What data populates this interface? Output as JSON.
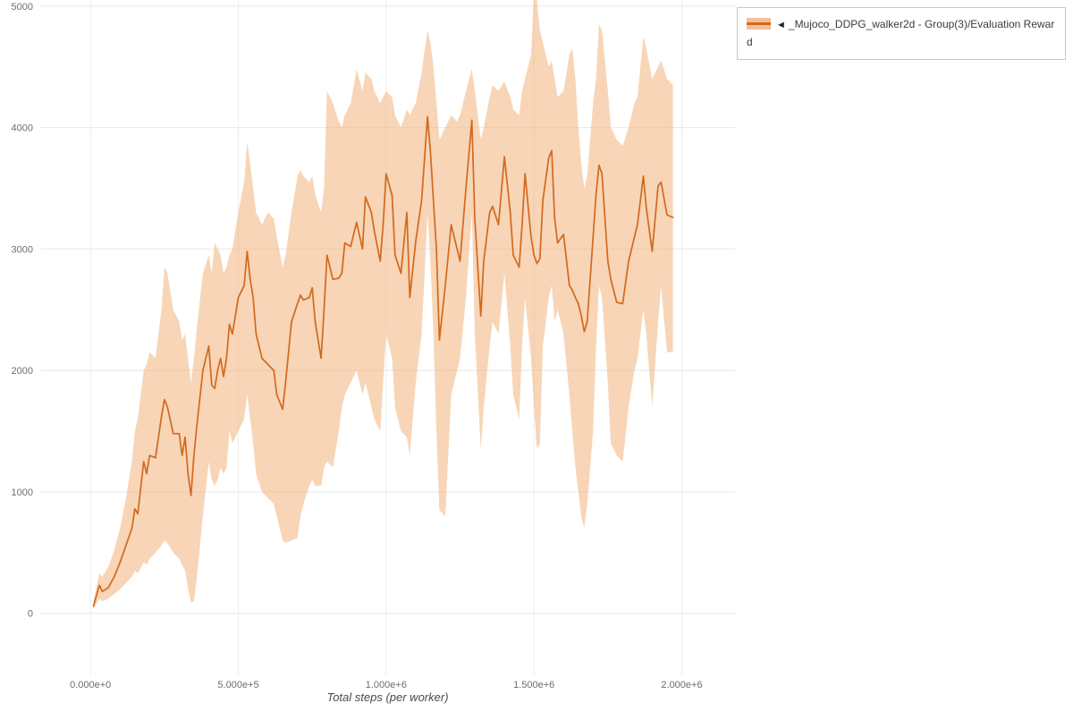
{
  "legend": {
    "marker": "◄",
    "label": "_Mujoco_DDPG_walker2d - Group(3)/Evaluation Reward"
  },
  "chart_data": {
    "type": "line",
    "title": "",
    "xlabel": "Total steps (per worker)",
    "ylabel": "",
    "grid": true,
    "legend_position": "top-right",
    "xlim": [
      -170000,
      2180000
    ],
    "ylim": [
      -510,
      5050
    ],
    "x_ticks": [
      {
        "value": 0,
        "label": "0.000e+0"
      },
      {
        "value": 500000,
        "label": "5.000e+5"
      },
      {
        "value": 1000000,
        "label": "1.000e+6"
      },
      {
        "value": 1500000,
        "label": "1.500e+6"
      },
      {
        "value": 2000000,
        "label": "2.000e+6"
      }
    ],
    "y_ticks": [
      {
        "value": 0,
        "label": "0"
      },
      {
        "value": 1000,
        "label": "1000"
      },
      {
        "value": 2000,
        "label": "2000"
      },
      {
        "value": 3000,
        "label": "3000"
      },
      {
        "value": 4000,
        "label": "4000"
      },
      {
        "value": 5000,
        "label": "5000"
      }
    ],
    "series": [
      {
        "name": "_Mujoco_DDPG_walker2d - Group(3)/Evaluation Reward",
        "line_color": "#d2691e",
        "band_color": "#f0b27a",
        "band_opacity": 0.55,
        "x": [
          10000.0,
          30000.0,
          40000.0,
          60000.0,
          80000.0,
          100000.0,
          120000.0,
          140000.0,
          150000.0,
          160000.0,
          180000.0,
          190000.0,
          200000.0,
          220000.0,
          240000.0,
          250000.0,
          260000.0,
          280000.0,
          300000.0,
          310000.0,
          320000.0,
          330000.0,
          340000.0,
          350000.0,
          360000.0,
          380000.0,
          400000.0,
          410000.0,
          420000.0,
          430000.0,
          440000.0,
          450000.0,
          460000.0,
          470000.0,
          480000.0,
          500000.0,
          520000.0,
          530000.0,
          540000.0,
          550000.0,
          560000.0,
          580000.0,
          600000.0,
          620000.0,
          630000.0,
          650000.0,
          660000.0,
          680000.0,
          700000.0,
          710000.0,
          720000.0,
          740000.0,
          750000.0,
          760000.0,
          780000.0,
          790000.0,
          800000.0,
          820000.0,
          840000.0,
          850000.0,
          860000.0,
          880000.0,
          900000.0,
          920000.0,
          930000.0,
          950000.0,
          960000.0,
          980000.0,
          990000.0,
          1000000.0,
          1020000.0,
          1030000.0,
          1050000.0,
          1070000.0,
          1080000.0,
          1100000.0,
          1120000.0,
          1140000.0,
          1150000.0,
          1160000.0,
          1170000.0,
          1180000.0,
          1200000.0,
          1220000.0,
          1240000.0,
          1250000.0,
          1270000.0,
          1290000.0,
          1300000.0,
          1320000.0,
          1330000.0,
          1350000.0,
          1360000.0,
          1380000.0,
          1400000.0,
          1420000.0,
          1430000.0,
          1450000.0,
          1460000.0,
          1470000.0,
          1490000.0,
          1500000.0,
          1510000.0,
          1520000.0,
          1530000.0,
          1550000.0,
          1560000.0,
          1570000.0,
          1580000.0,
          1600000.0,
          1620000.0,
          1630000.0,
          1640000.0,
          1650000.0,
          1660000.0,
          1670000.0,
          1680000.0,
          1700000.0,
          1710000.0,
          1720000.0,
          1730000.0,
          1750000.0,
          1760000.0,
          1780000.0,
          1800000.0,
          1820000.0,
          1840000.0,
          1850000.0,
          1870000.0,
          1880000.0,
          1900000.0,
          1920000.0,
          1930000.0,
          1950000.0,
          1970000.0
        ],
        "mean": [
          60,
          230,
          180,
          210,
          300,
          420,
          560,
          700,
          860,
          820,
          1250,
          1150,
          1300,
          1280,
          1620,
          1760,
          1700,
          1480,
          1480,
          1300,
          1450,
          1150,
          970,
          1300,
          1550,
          2000,
          2200,
          1880,
          1850,
          2000,
          2100,
          1950,
          2100,
          2380,
          2300,
          2600,
          2700,
          2980,
          2750,
          2600,
          2300,
          2100,
          2050,
          2000,
          1800,
          1680,
          1900,
          2400,
          2550,
          2620,
          2580,
          2600,
          2680,
          2400,
          2100,
          2500,
          2950,
          2750,
          2760,
          2800,
          3050,
          3020,
          3220,
          3000,
          3430,
          3300,
          3150,
          2900,
          3200,
          3620,
          3440,
          2950,
          2800,
          3300,
          2600,
          3060,
          3400,
          4090,
          3800,
          3400,
          3000,
          2250,
          2700,
          3200,
          3000,
          2900,
          3500,
          4060,
          3250,
          2450,
          2900,
          3300,
          3350,
          3200,
          3760,
          3300,
          2950,
          2850,
          3200,
          3620,
          3100,
          2950,
          2880,
          2920,
          3400,
          3750,
          3810,
          3250,
          3050,
          3120,
          2700,
          2660,
          2600,
          2550,
          2450,
          2320,
          2400,
          3100,
          3450,
          3690,
          3620,
          2900,
          2750,
          2560,
          2550,
          2900,
          3100,
          3200,
          3600,
          3340,
          2980,
          3520,
          3550,
          3280,
          3260
        ],
        "lower": [
          35,
          120,
          100,
          120,
          160,
          200,
          250,
          300,
          350,
          330,
          420,
          400,
          450,
          500,
          560,
          600,
          580,
          500,
          450,
          400,
          350,
          200,
          90,
          100,
          300,
          800,
          1250,
          1100,
          1050,
          1100,
          1200,
          1150,
          1200,
          1500,
          1400,
          1500,
          1600,
          1800,
          1600,
          1400,
          1150,
          1000,
          950,
          900,
          800,
          600,
          580,
          600,
          620,
          800,
          900,
          1050,
          1100,
          1050,
          1050,
          1200,
          1250,
          1200,
          1500,
          1700,
          1800,
          1900,
          2000,
          1800,
          1900,
          1700,
          1600,
          1500,
          1900,
          2300,
          2100,
          1700,
          1500,
          1450,
          1300,
          1900,
          2300,
          3300,
          2900,
          2300,
          1500,
          850,
          800,
          1800,
          2000,
          2100,
          2600,
          3300,
          2300,
          1350,
          1700,
          2200,
          2400,
          2300,
          2800,
          2200,
          1800,
          1600,
          2200,
          2600,
          2100,
          1700,
          1350,
          1400,
          2200,
          2600,
          2700,
          2400,
          2500,
          2300,
          1800,
          1500,
          1200,
          1000,
          800,
          700,
          900,
          1500,
          2200,
          2700,
          2600,
          1900,
          1400,
          1300,
          1250,
          1700,
          2000,
          2100,
          2500,
          2300,
          1700,
          2400,
          2700,
          2150,
          2150
        ],
        "upper": [
          100,
          330,
          300,
          380,
          520,
          700,
          950,
          1250,
          1500,
          1600,
          2000,
          2050,
          2150,
          2100,
          2500,
          2850,
          2800,
          2500,
          2400,
          2250,
          2300,
          2100,
          1900,
          2100,
          2350,
          2800,
          2950,
          2800,
          3050,
          3000,
          2950,
          2800,
          2850,
          2950,
          3000,
          3300,
          3550,
          3880,
          3700,
          3500,
          3300,
          3200,
          3300,
          3250,
          3100,
          2850,
          2950,
          3300,
          3600,
          3650,
          3600,
          3550,
          3600,
          3450,
          3300,
          3500,
          4300,
          4200,
          4050,
          4000,
          4100,
          4200,
          4480,
          4300,
          4450,
          4400,
          4300,
          4200,
          4250,
          4300,
          4250,
          4100,
          4000,
          4150,
          4100,
          4200,
          4450,
          4800,
          4700,
          4500,
          4200,
          3900,
          4000,
          4100,
          4050,
          4100,
          4300,
          4480,
          4300,
          3900,
          4000,
          4250,
          4350,
          4300,
          4380,
          4250,
          4150,
          4100,
          4300,
          4400,
          4600,
          5100,
          5050,
          4800,
          4700,
          4500,
          4550,
          4400,
          4250,
          4300,
          4600,
          4650,
          4400,
          4000,
          3700,
          3500,
          3600,
          4200,
          4400,
          4850,
          4800,
          4300,
          4000,
          3900,
          3850,
          4000,
          4200,
          4250,
          4750,
          4650,
          4400,
          4500,
          4550,
          4400,
          4350
        ]
      }
    ]
  }
}
